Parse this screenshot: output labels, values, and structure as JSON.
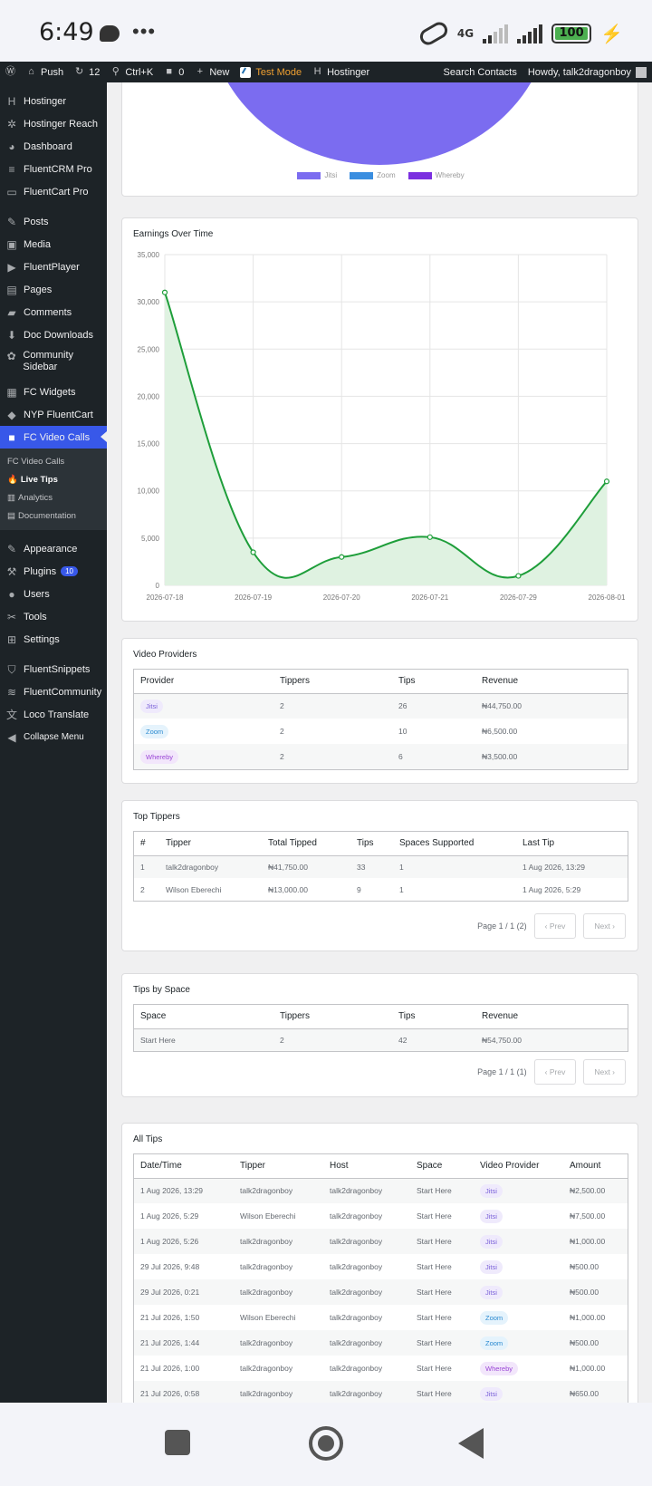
{
  "status_bar": {
    "time": "6:49",
    "network": "4G",
    "battery": "100"
  },
  "admin_bar": {
    "site": "Push",
    "updates": "12",
    "search": "Ctrl+K",
    "comments": "0",
    "new": "New",
    "test_mode": "Test Mode",
    "hostinger": "Hostinger",
    "search_contacts": "Search Contacts",
    "howdy": "Howdy, talk2dragonboy"
  },
  "sidebar": {
    "items_top": [
      "Hostinger",
      "Hostinger Reach",
      "Dashboard",
      "FluentCRM Pro",
      "FluentCart Pro"
    ],
    "items_mid": [
      "Posts",
      "Media",
      "FluentPlayer",
      "Pages",
      "Comments",
      "Doc Downloads",
      "Community Sidebar",
      "FC Widgets",
      "NYP FluentCart"
    ],
    "active": "FC Video Calls",
    "submenu": [
      "FC Video Calls",
      "Live Tips",
      "Analytics",
      "Documentation"
    ],
    "items_bottom": [
      "Appearance",
      "Plugins",
      "Users",
      "Tools",
      "Settings"
    ],
    "plugins_badge": "10",
    "items_end": [
      "FluentSnippets",
      "FluentCommunity",
      "Loco Translate",
      "Collapse Menu"
    ]
  },
  "pie_legend": [
    "Jitsi",
    "Zoom",
    "Whereby"
  ],
  "colors": {
    "jitsi": "#7b6cf0",
    "zoom": "#3a8ee0",
    "whereby": "#7b2fe0",
    "line": "#1e9e3a",
    "fill": "#dff2e1"
  },
  "chart_data": {
    "type": "line",
    "title": "Earnings Over Time",
    "x": [
      "2026-07-18",
      "2026-07-19",
      "2026-07-20",
      "2026-07-21",
      "2026-07-29",
      "2026-08-01"
    ],
    "values": [
      31000,
      3500,
      3000,
      5100,
      1000,
      11000
    ],
    "yticks": [
      "35,000",
      "30,000",
      "25,000",
      "20,000",
      "15,000",
      "10,000",
      "5,000",
      "0"
    ],
    "ylim": [
      0,
      35000
    ],
    "grid": true
  },
  "video_providers": {
    "title": "Video Providers",
    "headers": [
      "Provider",
      "Tippers",
      "Tips",
      "Revenue"
    ],
    "rows": [
      {
        "provider": "Jitsi",
        "tippers": "2",
        "tips": "26",
        "revenue": "₦44,750.00"
      },
      {
        "provider": "Zoom",
        "tippers": "2",
        "tips": "10",
        "revenue": "₦6,500.00"
      },
      {
        "provider": "Whereby",
        "tippers": "2",
        "tips": "6",
        "revenue": "₦3,500.00"
      }
    ]
  },
  "top_tippers": {
    "title": "Top Tippers",
    "headers": [
      "#",
      "Tipper",
      "Total Tipped",
      "Tips",
      "Spaces Supported",
      "Last Tip"
    ],
    "rows": [
      {
        "rank": "1",
        "tipper": "talk2dragonboy",
        "total": "₦41,750.00",
        "tips": "33",
        "spaces": "1",
        "last": "1 Aug 2026, 13:29"
      },
      {
        "rank": "2",
        "tipper": "Wilson Eberechi",
        "total": "₦13,000.00",
        "tips": "9",
        "spaces": "1",
        "last": "1 Aug 2026, 5:29"
      }
    ],
    "page": "Page 1 / 1 (2)",
    "prev": "‹ Prev",
    "next": "Next ›"
  },
  "tips_by_space": {
    "title": "Tips by Space",
    "headers": [
      "Space",
      "Tippers",
      "Tips",
      "Revenue"
    ],
    "rows": [
      {
        "space": "Start Here",
        "tippers": "2",
        "tips": "42",
        "revenue": "₦54,750.00"
      }
    ],
    "page": "Page 1 / 1 (1)",
    "prev": "‹ Prev",
    "next": "Next ›"
  },
  "all_tips": {
    "title": "All Tips",
    "headers": [
      "Date/Time",
      "Tipper",
      "Host",
      "Space",
      "Video Provider",
      "Amount"
    ],
    "rows": [
      {
        "date": "1 Aug 2026, 13:29",
        "tipper": "talk2dragonboy",
        "host": "talk2dragonboy",
        "space": "Start Here",
        "provider": "Jitsi",
        "amount": "₦2,500.00"
      },
      {
        "date": "1 Aug 2026, 5:29",
        "tipper": "Wilson Eberechi",
        "host": "talk2dragonboy",
        "space": "Start Here",
        "provider": "Jitsi",
        "amount": "₦7,500.00"
      },
      {
        "date": "1 Aug 2026, 5:26",
        "tipper": "talk2dragonboy",
        "host": "talk2dragonboy",
        "space": "Start Here",
        "provider": "Jitsi",
        "amount": "₦1,000.00"
      },
      {
        "date": "29 Jul 2026, 9:48",
        "tipper": "talk2dragonboy",
        "host": "talk2dragonboy",
        "space": "Start Here",
        "provider": "Jitsi",
        "amount": "₦500.00"
      },
      {
        "date": "29 Jul 2026, 0:21",
        "tipper": "talk2dragonboy",
        "host": "talk2dragonboy",
        "space": "Start Here",
        "provider": "Jitsi",
        "amount": "₦500.00"
      },
      {
        "date": "21 Jul 2026, 1:50",
        "tipper": "Wilson Eberechi",
        "host": "talk2dragonboy",
        "space": "Start Here",
        "provider": "Zoom",
        "amount": "₦1,000.00"
      },
      {
        "date": "21 Jul 2026, 1:44",
        "tipper": "talk2dragonboy",
        "host": "talk2dragonboy",
        "space": "Start Here",
        "provider": "Zoom",
        "amount": "₦500.00"
      },
      {
        "date": "21 Jul 2026, 1:00",
        "tipper": "talk2dragonboy",
        "host": "talk2dragonboy",
        "space": "Start Here",
        "provider": "Whereby",
        "amount": "₦1,000.00"
      },
      {
        "date": "21 Jul 2026, 0:58",
        "tipper": "talk2dragonboy",
        "host": "talk2dragonboy",
        "space": "Start Here",
        "provider": "Jitsi",
        "amount": "₦650.00"
      }
    ]
  }
}
